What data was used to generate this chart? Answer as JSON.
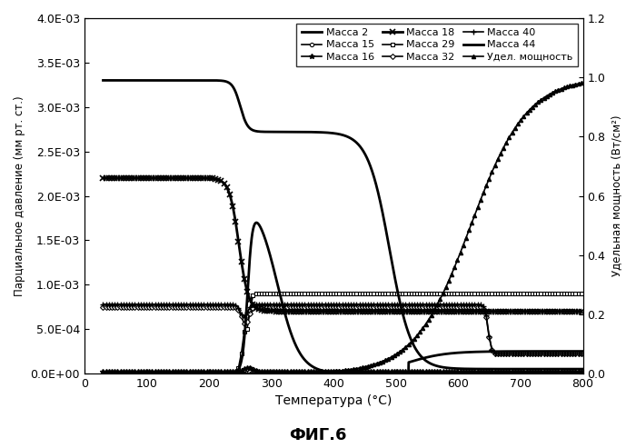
{
  "fig_title": "ФИГ.6",
  "xlabel": "Температура (°C)",
  "ylabel_left": "Парциальное давление (мм рт. ст.)",
  "ylabel_right": "Удельная мощность (Вт/см²)",
  "xlim": [
    0,
    800
  ],
  "ylim_left": [
    0.0,
    0.004
  ],
  "ylim_right": [
    0.0,
    1.2
  ],
  "yticks_left": [
    0.0,
    0.0005,
    0.001,
    0.0015,
    0.002,
    0.0025,
    0.003,
    0.0035,
    0.004
  ],
  "yticks_right": [
    0,
    0.2,
    0.4,
    0.6,
    0.8,
    1.0,
    1.2
  ],
  "xticks": [
    0,
    100,
    200,
    300,
    400,
    500,
    600,
    700,
    800
  ]
}
